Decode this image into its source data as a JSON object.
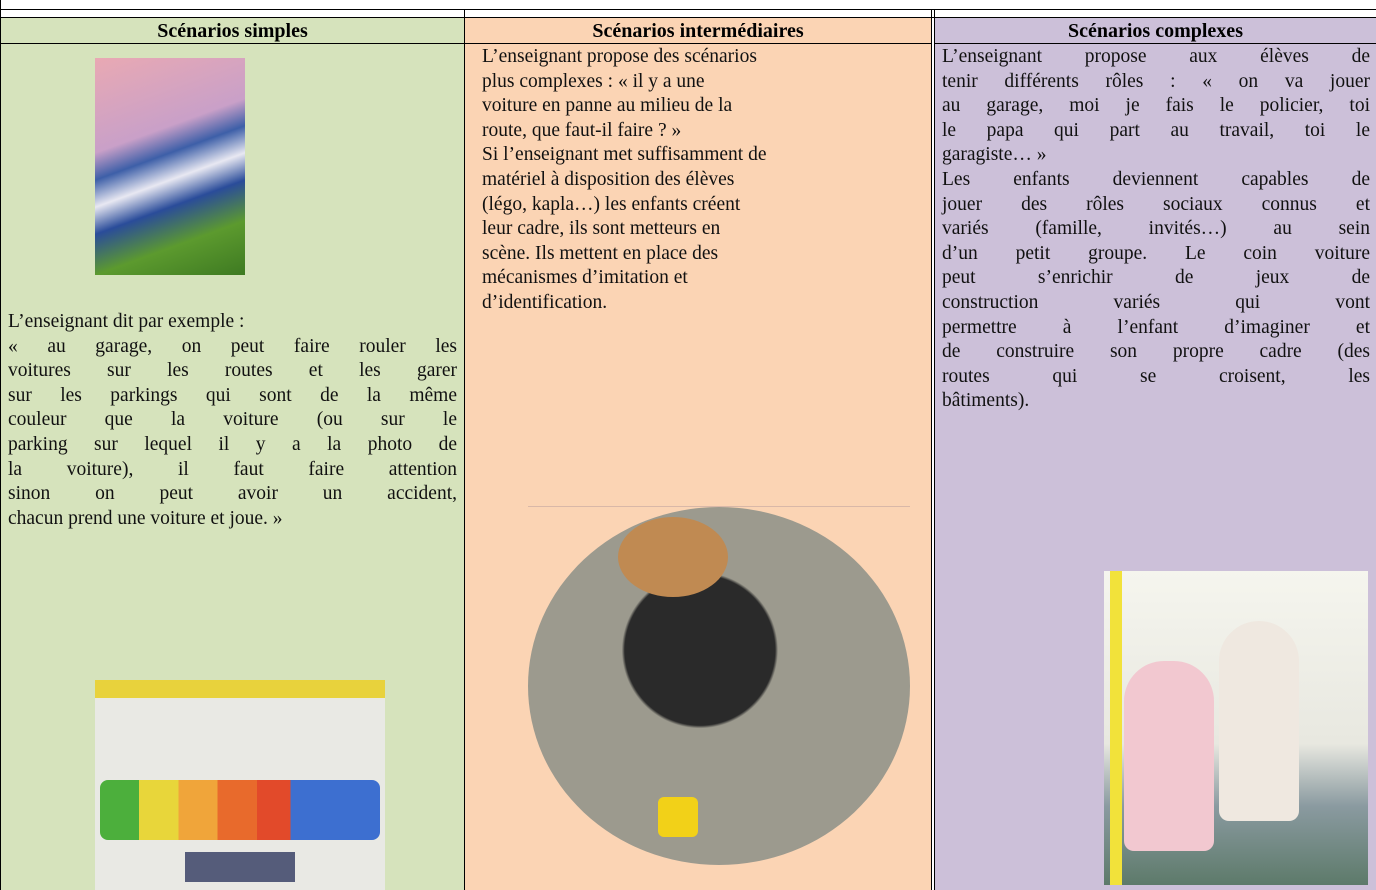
{
  "table": {
    "columns": [
      {
        "header": "Scénarios simples",
        "paragraphs": [
          {
            "lines": [
              "L’enseignant dit par exemple :",
              "« au garage, on peut faire rouler les",
              "voitures sur les routes et les garer",
              "sur les parkings qui sont de la même",
              "couleur que la voiture (ou sur le",
              "parking sur lequel il y a la photo de",
              "la voiture), il faut faire attention",
              "sinon on peut avoir un accident,",
              "chacun prend une voiture et joue. »"
            ]
          }
        ]
      },
      {
        "header": "Scénarios intermédiaires",
        "paragraphs": [
          {
            "lines": [
              "L’enseignant propose des scénarios",
              "plus complexes : «  il y a une",
              "voiture en panne au milieu de la",
              "route, que faut-il faire ? »"
            ]
          },
          {
            "lines": [
              "Si l’enseignant met suffisamment de",
              "matériel à disposition des élèves",
              "(légo, kapla…) les enfants créent",
              "leur cadre, ils sont metteurs en",
              "scène. Ils mettent en place des",
              "mécanismes d’imitation et",
              "d’identification."
            ]
          }
        ]
      },
      {
        "header": "Scénarios complexes",
        "paragraphs": [
          {
            "lines": [
              "L’enseignant propose aux élèves de",
              "tenir différents rôles : « on va jouer",
              "au garage, moi je fais le policier, toi",
              "le papa qui part au travail, toi le",
              "garagiste… »"
            ]
          },
          {
            "lines": [
              "Les enfants deviennent capables de",
              "jouer des rôles sociaux connus et",
              "variés (famille, invités…) au sein",
              "d’un petit groupe. Le coin voiture",
              "peut s’enrichir de jeux de",
              "construction variés qui vont",
              "permettre à l’enfant d’imaginer et",
              "de construire son propre cadre (des",
              "routes qui se croisent, les",
              "bâtiments)."
            ]
          }
        ]
      }
    ]
  }
}
